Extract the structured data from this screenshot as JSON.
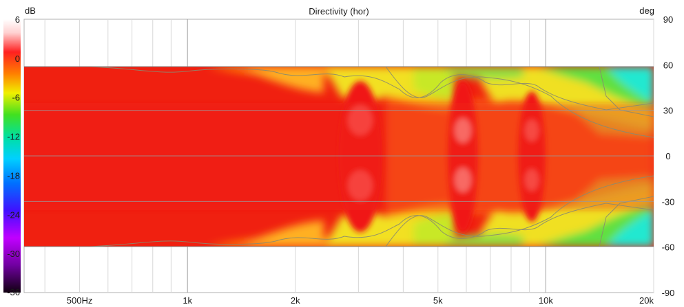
{
  "chart_data": {
    "type": "heatmap",
    "title": "Directivity (hor)",
    "colorbar_unit": "dB",
    "right_axis_unit": "deg",
    "colorbar_ticks": [
      "6",
      "0",
      "-6",
      "-12",
      "-18",
      "-24",
      "-30",
      "-36"
    ],
    "colorbar_range": [
      -36,
      6
    ],
    "x_scale": "log",
    "x_range_hz": [
      350,
      20000
    ],
    "x_ticks": [
      {
        "hz": 500,
        "label": "500Hz"
      },
      {
        "hz": 1000,
        "label": "1k"
      },
      {
        "hz": 2000,
        "label": "2k"
      },
      {
        "hz": 5000,
        "label": "5k"
      },
      {
        "hz": 10000,
        "label": "10k"
      },
      {
        "hz": 20000,
        "label": "20k"
      }
    ],
    "y_range_deg": [
      -90,
      90
    ],
    "data_range_deg": [
      -60,
      60
    ],
    "y_ticks": [
      "90",
      "60",
      "30",
      "0",
      "-30",
      "-60",
      "-90"
    ],
    "description_levels_db": {
      "on_axis": 0,
      "contours": [
        -3,
        -6,
        -9
      ]
    }
  }
}
